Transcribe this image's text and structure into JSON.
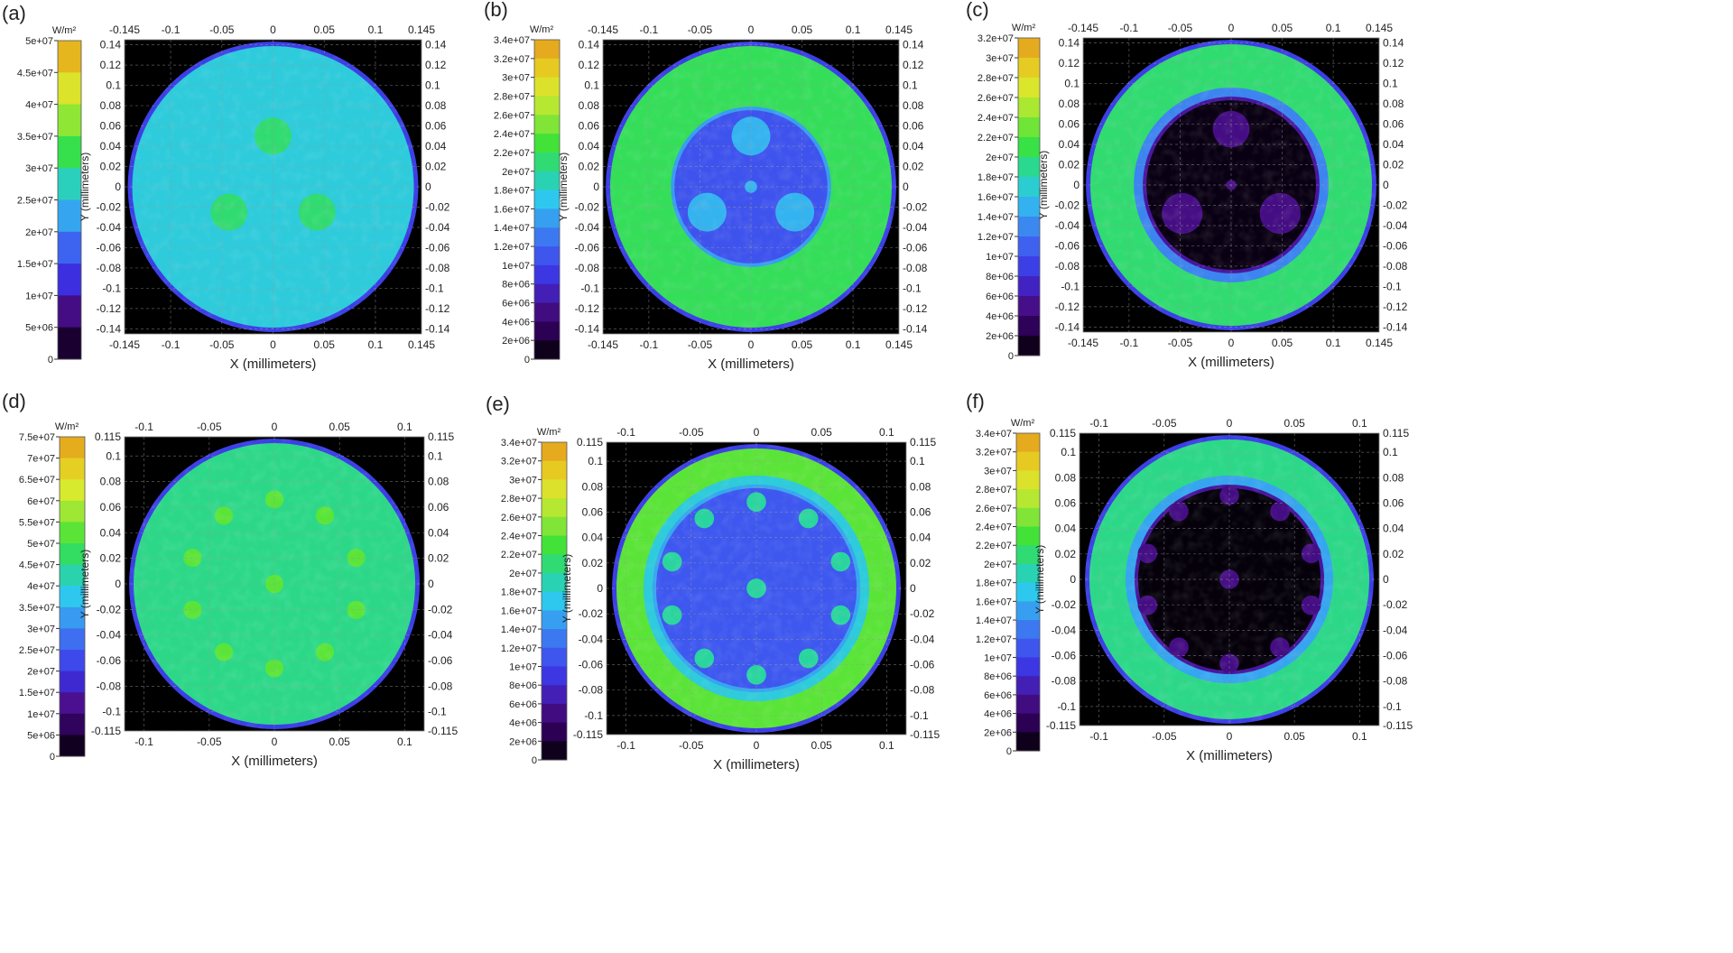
{
  "panel_labels": [
    "(a)",
    "(b)",
    "(c)",
    "(d)",
    "(e)",
    "(f)"
  ],
  "colorbar_unit": "W/m²",
  "x_axis_label": "X (millimeters)",
  "y_axis_label": "Y (millimeters)",
  "colormap": {
    "background": "#000000",
    "gradient": [
      "#000000",
      "#2a0050",
      "#4a1090",
      "#3b2fe0",
      "#3e5af0",
      "#3b8ef0",
      "#2ec8ef",
      "#29d69b",
      "#39e23a",
      "#8fe635",
      "#d8ea2e",
      "#e8c820",
      "#e39a1c"
    ]
  },
  "chart_data": [
    {
      "type": "heatmap",
      "panel": "(a)",
      "colorbar_ticks": [
        "5e+07",
        "4.5e+07",
        "4e+07",
        "3.5e+07",
        "3e+07",
        "2.5e+07",
        "2e+07",
        "1.5e+07",
        "1e+07",
        "5e+06",
        "0"
      ],
      "colorbar_range": [
        0,
        50000000
      ],
      "x_ticks": [
        "-0.145",
        "-0.1",
        "-0.05",
        "0",
        "0.05",
        "0.1",
        "0.145"
      ],
      "y_ticks": [
        "0.14",
        "0.12",
        "0.1",
        "0.08",
        "0.06",
        "0.04",
        "0.02",
        "0",
        "-0.02",
        "-0.04",
        "-0.06",
        "-0.08",
        "-0.1",
        "-0.12",
        "-0.14"
      ],
      "xlim": [
        -0.145,
        0.145
      ],
      "ylim": [
        -0.145,
        0.145
      ],
      "field": "uniform disk, low irradiance (~2.5e+07), three faint circular spots at (0, 0.05), (-0.043, -0.025), (0.043, -0.025)"
    },
    {
      "type": "heatmap",
      "panel": "(b)",
      "colorbar_ticks": [
        "3.4e+07",
        "3.2e+07",
        "3e+07",
        "2.8e+07",
        "2.6e+07",
        "2.4e+07",
        "2.2e+07",
        "2e+07",
        "1.8e+07",
        "1.6e+07",
        "1.4e+07",
        "1.2e+07",
        "1e+07",
        "8e+06",
        "6e+06",
        "4e+06",
        "2e+06",
        "0"
      ],
      "colorbar_range": [
        0,
        34000000
      ],
      "x_ticks": [
        "-0.145",
        "-0.1",
        "-0.05",
        "0",
        "0.05",
        "0.1",
        "0.145"
      ],
      "y_ticks": [
        "0.14",
        "0.12",
        "0.1",
        "0.08",
        "0.06",
        "0.04",
        "0.02",
        "0",
        "-0.02",
        "-0.04",
        "-0.06",
        "-0.08",
        "-0.1",
        "-0.12",
        "-0.14"
      ],
      "xlim": [
        -0.145,
        0.145
      ],
      "ylim": [
        -0.145,
        0.145
      ],
      "field": "bright green-yellow outer region (~2.2e+07), dark blue central zone (~1e+07) with three cyan spots and a small central dot"
    },
    {
      "type": "heatmap",
      "panel": "(c)",
      "colorbar_ticks": [
        "3.2e+07",
        "3e+07",
        "2.8e+07",
        "2.6e+07",
        "2.4e+07",
        "2.2e+07",
        "2e+07",
        "1.8e+07",
        "1.6e+07",
        "1.4e+07",
        "1.2e+07",
        "1e+07",
        "8e+06",
        "6e+06",
        "4e+06",
        "2e+06",
        "0"
      ],
      "colorbar_range": [
        0,
        32000000
      ],
      "x_ticks": [
        "-0.145",
        "-0.1",
        "-0.05",
        "0",
        "0.05",
        "0.1",
        "0.145"
      ],
      "y_ticks": [
        "0.14",
        "0.12",
        "0.1",
        "0.08",
        "0.06",
        "0.04",
        "0.02",
        "0",
        "-0.02",
        "-0.04",
        "-0.06",
        "-0.08",
        "-0.1",
        "-0.12",
        "-0.14"
      ],
      "xlim": [
        -0.145,
        0.145
      ],
      "ylim": [
        -0.145,
        0.145
      ],
      "field": "green annulus (~2e+07) around a black core containing three dark purple spots and a tiny central dot"
    },
    {
      "type": "heatmap",
      "panel": "(d)",
      "colorbar_ticks": [
        "7.5e+07",
        "7e+07",
        "6.5e+07",
        "6e+07",
        "5.5e+07",
        "5e+07",
        "4.5e+07",
        "4e+07",
        "3.5e+07",
        "3e+07",
        "2.5e+07",
        "2e+07",
        "1.5e+07",
        "1e+07",
        "5e+06",
        "0"
      ],
      "colorbar_range": [
        0,
        75000000
      ],
      "x_ticks": [
        "-0.1",
        "-0.05",
        "0",
        "0.05",
        "0.1"
      ],
      "y_ticks": [
        "0.115",
        "0.1",
        "0.08",
        "0.06",
        "0.04",
        "0.02",
        "0",
        "-0.02",
        "-0.04",
        "-0.06",
        "-0.08",
        "-0.1",
        "-0.115"
      ],
      "xlim": [
        -0.115,
        0.115
      ],
      "ylim": [
        -0.115,
        0.115
      ],
      "field": "uniform green disk (~4.5e+07) with faint yellowish spots on a ring of radius 0.065 plus centre"
    },
    {
      "type": "heatmap",
      "panel": "(e)",
      "colorbar_ticks": [
        "3.4e+07",
        "3.2e+07",
        "3e+07",
        "2.8e+07",
        "2.6e+07",
        "2.4e+07",
        "2.2e+07",
        "2e+07",
        "1.8e+07",
        "1.6e+07",
        "1.4e+07",
        "1.2e+07",
        "1e+07",
        "8e+06",
        "6e+06",
        "4e+06",
        "2e+06",
        "0"
      ],
      "colorbar_range": [
        0,
        34000000
      ],
      "x_ticks": [
        "-0.1",
        "-0.05",
        "0",
        "0.05",
        "0.1"
      ],
      "y_ticks": [
        "0.115",
        "0.1",
        "0.08",
        "0.06",
        "0.04",
        "0.02",
        "0",
        "-0.02",
        "-0.04",
        "-0.06",
        "-0.08",
        "-0.1",
        "-0.115"
      ],
      "xlim": [
        -0.115,
        0.115
      ],
      "ylim": [
        -0.115,
        0.115
      ],
      "field": "green-yellow annulus (~2.4e+07) around a blue core (~8e+06) with ten green spots on a ring of radius 0.068 plus centre"
    },
    {
      "type": "heatmap",
      "panel": "(f)",
      "colorbar_ticks": [
        "3.4e+07",
        "3.2e+07",
        "3e+07",
        "2.8e+07",
        "2.6e+07",
        "2.4e+07",
        "2.2e+07",
        "2e+07",
        "1.8e+07",
        "1.6e+07",
        "1.4e+07",
        "1.2e+07",
        "1e+07",
        "8e+06",
        "6e+06",
        "4e+06",
        "2e+06",
        "0"
      ],
      "colorbar_range": [
        0,
        34000000
      ],
      "x_ticks": [
        "-0.1",
        "-0.05",
        "0",
        "0.05",
        "0.1"
      ],
      "y_ticks": [
        "0.115",
        "0.1",
        "0.08",
        "0.06",
        "0.04",
        "0.02",
        "0",
        "-0.02",
        "-0.04",
        "-0.06",
        "-0.08",
        "-0.1",
        "-0.115"
      ],
      "xlim": [
        -0.115,
        0.115
      ],
      "ylim": [
        -0.115,
        0.115
      ],
      "field": "green annulus (~1.8e+07) around a black core with dark purple spots on a ring of radius 0.07 plus centre"
    }
  ]
}
